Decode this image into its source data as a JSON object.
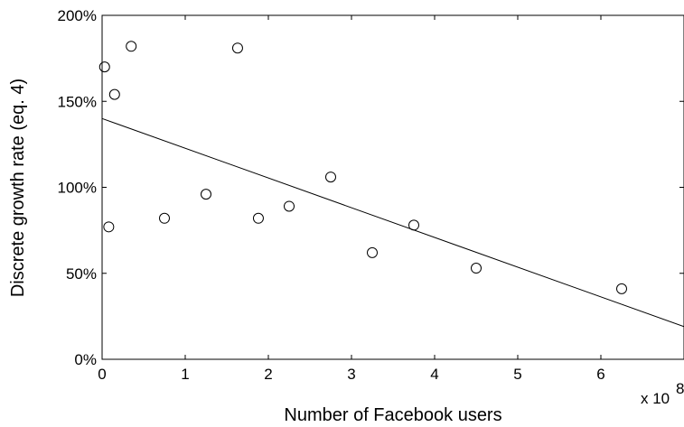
{
  "chart_data": {
    "type": "scatter",
    "title": "",
    "xlabel": "Number of Facebook users",
    "ylabel": "Discrete growth rate (eq. 4)",
    "x_multiplier_label": "x 10",
    "x_multiplier_exponent": "8",
    "xlim": [
      0,
      7
    ],
    "ylim": [
      0,
      200
    ],
    "x_ticks": [
      0,
      1,
      2,
      3,
      4,
      5,
      6
    ],
    "x_tick_labels": [
      "0",
      "1",
      "2",
      "3",
      "4",
      "5",
      "6"
    ],
    "y_ticks": [
      0,
      50,
      100,
      150,
      200
    ],
    "y_tick_labels": [
      "0%",
      "50%",
      "100%",
      "150%",
      "200%"
    ],
    "grid": false,
    "points": [
      {
        "x": 0.03,
        "y": 170
      },
      {
        "x": 0.08,
        "y": 77
      },
      {
        "x": 0.15,
        "y": 154
      },
      {
        "x": 0.35,
        "y": 182
      },
      {
        "x": 0.75,
        "y": 82
      },
      {
        "x": 1.25,
        "y": 96
      },
      {
        "x": 1.63,
        "y": 181
      },
      {
        "x": 1.88,
        "y": 82
      },
      {
        "x": 2.25,
        "y": 89
      },
      {
        "x": 2.75,
        "y": 106
      },
      {
        "x": 3.25,
        "y": 62
      },
      {
        "x": 3.75,
        "y": 78
      },
      {
        "x": 4.5,
        "y": 53
      },
      {
        "x": 6.25,
        "y": 41
      }
    ],
    "fit_line": {
      "x": [
        0,
        7
      ],
      "y": [
        140,
        19
      ]
    }
  }
}
